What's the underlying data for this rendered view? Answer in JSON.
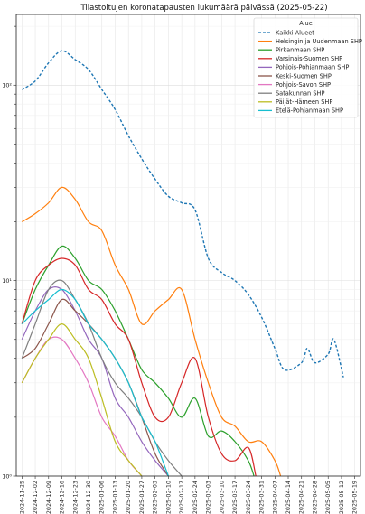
{
  "chart_data": {
    "type": "line",
    "title": "Tilastoitujen koronatapausten lukumäärä päivässä (2025-05-22)",
    "xlabel": "",
    "ylabel": "",
    "y_scale": "log",
    "ylim": [
      1,
      230
    ],
    "y_ticks": [
      {
        "value": 1,
        "label": "10⁰"
      },
      {
        "value": 10,
        "label": "10¹"
      },
      {
        "value": 100,
        "label": "10²"
      }
    ],
    "x_ticks": [
      "2024-11-25",
      "2024-12-02",
      "2024-12-09",
      "2024-12-16",
      "2024-12-23",
      "2024-12-30",
      "2025-01-06",
      "2025-01-13",
      "2025-01-20",
      "2025-01-27",
      "2025-02-03",
      "2025-02-10",
      "2025-02-17",
      "2025-02-24",
      "2025-03-03",
      "2025-03-10",
      "2025-03-17",
      "2025-03-24",
      "2025-03-31",
      "2025-04-07",
      "2025-04-14",
      "2025-04-21",
      "2025-04-28",
      "2025-05-05",
      "2025-05-12",
      "2025-05-19"
    ],
    "grid": true,
    "legend": {
      "title": "Alue",
      "placement": "top-right"
    },
    "series": [
      {
        "name": "Kaikki Alueet",
        "color": "#1f77b4",
        "style": "dashed",
        "points": [
          [
            "2024-11-25",
            95
          ],
          [
            "2024-12-02",
            105
          ],
          [
            "2024-12-09",
            130
          ],
          [
            "2024-12-16",
            150
          ],
          [
            "2024-12-23",
            135
          ],
          [
            "2024-12-30",
            120
          ],
          [
            "2025-01-06",
            95
          ],
          [
            "2025-01-13",
            75
          ],
          [
            "2025-01-20",
            55
          ],
          [
            "2025-01-27",
            42
          ],
          [
            "2025-02-03",
            33
          ],
          [
            "2025-02-10",
            27
          ],
          [
            "2025-02-17",
            25
          ],
          [
            "2025-02-24",
            23
          ],
          [
            "2025-03-03",
            13
          ],
          [
            "2025-03-10",
            11
          ],
          [
            "2025-03-17",
            10
          ],
          [
            "2025-03-24",
            8.5
          ],
          [
            "2025-03-31",
            6.5
          ],
          [
            "2025-04-07",
            4.5
          ],
          [
            "2025-04-12",
            3.5
          ],
          [
            "2025-04-21",
            3.8
          ],
          [
            "2025-04-24",
            4.5
          ],
          [
            "2025-04-28",
            3.8
          ],
          [
            "2025-05-05",
            4.2
          ],
          [
            "2025-05-08",
            5.0
          ],
          [
            "2025-05-13",
            3.2
          ]
        ]
      },
      {
        "name": "Helsingin ja Uudenmaan SHP",
        "color": "#ff7f0e",
        "style": "solid",
        "points": [
          [
            "2024-11-25",
            20
          ],
          [
            "2024-12-02",
            22
          ],
          [
            "2024-12-09",
            25
          ],
          [
            "2024-12-16",
            30
          ],
          [
            "2024-12-23",
            26
          ],
          [
            "2024-12-30",
            20
          ],
          [
            "2025-01-06",
            18
          ],
          [
            "2025-01-13",
            12
          ],
          [
            "2025-01-20",
            9
          ],
          [
            "2025-01-27",
            6
          ],
          [
            "2025-02-03",
            7
          ],
          [
            "2025-02-10",
            8
          ],
          [
            "2025-02-17",
            9
          ],
          [
            "2025-02-24",
            5
          ],
          [
            "2025-03-03",
            3
          ],
          [
            "2025-03-10",
            2
          ],
          [
            "2025-03-17",
            1.8
          ],
          [
            "2025-03-24",
            1.5
          ],
          [
            "2025-03-31",
            1.5
          ],
          [
            "2025-04-07",
            1.2
          ],
          [
            "2025-04-10",
            1.0
          ]
        ]
      },
      {
        "name": "Pirkanmaan SHP",
        "color": "#2ca02c",
        "style": "solid",
        "points": [
          [
            "2024-11-25",
            6
          ],
          [
            "2024-12-02",
            9
          ],
          [
            "2024-12-09",
            12
          ],
          [
            "2024-12-16",
            15
          ],
          [
            "2024-12-23",
            13
          ],
          [
            "2024-12-30",
            10
          ],
          [
            "2025-01-06",
            9
          ],
          [
            "2025-01-13",
            7
          ],
          [
            "2025-01-20",
            5
          ],
          [
            "2025-01-27",
            3.5
          ],
          [
            "2025-02-03",
            3
          ],
          [
            "2025-02-10",
            2.5
          ],
          [
            "2025-02-17",
            2.0
          ],
          [
            "2025-02-24",
            2.5
          ],
          [
            "2025-03-03",
            1.6
          ],
          [
            "2025-03-10",
            1.7
          ],
          [
            "2025-03-17",
            1.5
          ],
          [
            "2025-03-24",
            1.2
          ],
          [
            "2025-03-27",
            1.0
          ]
        ]
      },
      {
        "name": "Varsinais-Suomen SHP",
        "color": "#d62728",
        "style": "solid",
        "points": [
          [
            "2024-11-25",
            6
          ],
          [
            "2024-12-02",
            10
          ],
          [
            "2024-12-09",
            12
          ],
          [
            "2024-12-16",
            13
          ],
          [
            "2024-12-23",
            12
          ],
          [
            "2024-12-30",
            9
          ],
          [
            "2025-01-06",
            8
          ],
          [
            "2025-01-13",
            6
          ],
          [
            "2025-01-20",
            5
          ],
          [
            "2025-01-27",
            3
          ],
          [
            "2025-02-03",
            2
          ],
          [
            "2025-02-10",
            2
          ],
          [
            "2025-02-17",
            3
          ],
          [
            "2025-02-24",
            4
          ],
          [
            "2025-03-03",
            2
          ],
          [
            "2025-03-10",
            1.3
          ],
          [
            "2025-03-17",
            1.2
          ],
          [
            "2025-03-24",
            1.4
          ],
          [
            "2025-03-28",
            1.0
          ]
        ]
      },
      {
        "name": "Pohjois-Pohjanmaan SHP",
        "color": "#9467bd",
        "style": "solid",
        "points": [
          [
            "2024-11-25",
            5
          ],
          [
            "2024-12-02",
            7
          ],
          [
            "2024-12-09",
            9
          ],
          [
            "2024-12-16",
            9
          ],
          [
            "2024-12-23",
            7
          ],
          [
            "2024-12-30",
            5
          ],
          [
            "2025-01-06",
            4
          ],
          [
            "2025-01-13",
            2.5
          ],
          [
            "2025-01-20",
            2
          ],
          [
            "2025-01-27",
            1.5
          ],
          [
            "2025-02-03",
            1.2
          ],
          [
            "2025-02-10",
            1.0
          ]
        ]
      },
      {
        "name": "Keski-Suomen SHP",
        "color": "#8c564b",
        "style": "solid",
        "points": [
          [
            "2024-11-25",
            4
          ],
          [
            "2024-12-02",
            4.5
          ],
          [
            "2024-12-09",
            6
          ],
          [
            "2024-12-16",
            8
          ],
          [
            "2024-12-23",
            7
          ],
          [
            "2024-12-30",
            6
          ],
          [
            "2025-01-06",
            5
          ],
          [
            "2025-01-13",
            4
          ],
          [
            "2025-01-20",
            3
          ],
          [
            "2025-01-27",
            2
          ],
          [
            "2025-02-03",
            1.3
          ],
          [
            "2025-02-10",
            1.0
          ]
        ]
      },
      {
        "name": "Pohjois-Savon SHP",
        "color": "#e377c2",
        "style": "solid",
        "points": [
          [
            "2024-11-25",
            3
          ],
          [
            "2024-12-02",
            4
          ],
          [
            "2024-12-09",
            5
          ],
          [
            "2024-12-16",
            5
          ],
          [
            "2024-12-23",
            4
          ],
          [
            "2024-12-30",
            3
          ],
          [
            "2025-01-06",
            2
          ],
          [
            "2025-01-13",
            1.6
          ],
          [
            "2025-01-20",
            1.2
          ],
          [
            "2025-01-27",
            1.0
          ]
        ]
      },
      {
        "name": "Satakunnan SHP",
        "color": "#7f7f7f",
        "style": "solid",
        "points": [
          [
            "2024-11-25",
            4
          ],
          [
            "2024-12-02",
            6
          ],
          [
            "2024-12-09",
            9
          ],
          [
            "2024-12-16",
            10
          ],
          [
            "2024-12-23",
            8
          ],
          [
            "2024-12-30",
            6
          ],
          [
            "2025-01-06",
            4
          ],
          [
            "2025-01-13",
            3
          ],
          [
            "2025-01-20",
            2.5
          ],
          [
            "2025-01-27",
            2
          ],
          [
            "2025-02-03",
            1.5
          ],
          [
            "2025-02-10",
            1.2
          ],
          [
            "2025-02-17",
            1.0
          ]
        ]
      },
      {
        "name": "Päijät-Hämeen SHP",
        "color": "#bcbd22",
        "style": "solid",
        "points": [
          [
            "2024-11-25",
            3
          ],
          [
            "2024-12-02",
            4
          ],
          [
            "2024-12-09",
            5
          ],
          [
            "2024-12-16",
            6
          ],
          [
            "2024-12-23",
            5
          ],
          [
            "2024-12-30",
            4
          ],
          [
            "2025-01-06",
            2.5
          ],
          [
            "2025-01-13",
            1.5
          ],
          [
            "2025-01-20",
            1.2
          ],
          [
            "2025-01-27",
            1.0
          ]
        ]
      },
      {
        "name": "Etelä-Pohjanmaan SHP",
        "color": "#17becf",
        "style": "solid",
        "points": [
          [
            "2024-11-25",
            6
          ],
          [
            "2024-12-02",
            7
          ],
          [
            "2024-12-09",
            8
          ],
          [
            "2024-12-16",
            9
          ],
          [
            "2024-12-23",
            8
          ],
          [
            "2024-12-30",
            6
          ],
          [
            "2025-01-06",
            5
          ],
          [
            "2025-01-13",
            4
          ],
          [
            "2025-01-20",
            3
          ],
          [
            "2025-01-27",
            2
          ],
          [
            "2025-02-03",
            1.5
          ],
          [
            "2025-02-10",
            1.0
          ]
        ]
      }
    ]
  }
}
